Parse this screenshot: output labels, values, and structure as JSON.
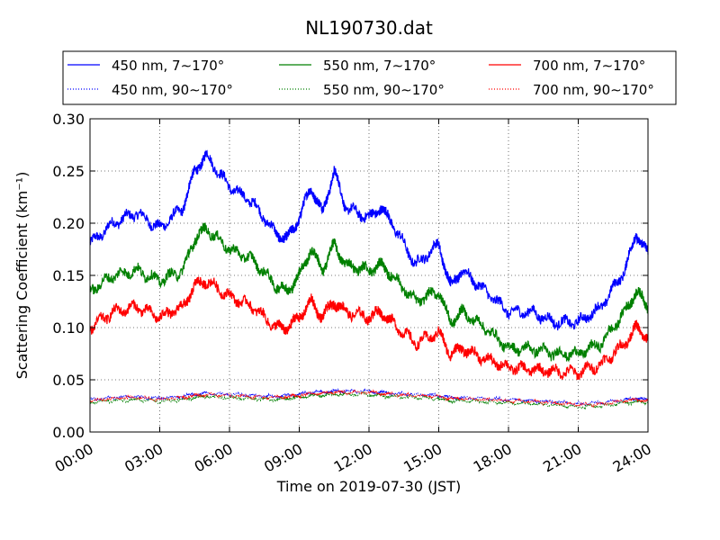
{
  "chart_data": {
    "type": "line",
    "title": "NL190730.dat",
    "xlabel": "Time on 2019-07-30 (JST)",
    "ylabel": "Scattering Coefficient (km⁻¹)",
    "xlim": [
      "00:00",
      "24:00"
    ],
    "ylim": [
      0.0,
      0.3
    ],
    "xticks": [
      "00:00",
      "03:00",
      "06:00",
      "09:00",
      "12:00",
      "15:00",
      "18:00",
      "21:00",
      "24:00"
    ],
    "yticks": [
      "0.00",
      "0.05",
      "0.10",
      "0.15",
      "0.20",
      "0.25",
      "0.30"
    ],
    "grid": true,
    "legend_position": "top, outside the plot area (3 columns)",
    "x": [
      "00:00",
      "01:00",
      "02:00",
      "03:00",
      "04:00",
      "04:30",
      "05:00",
      "06:00",
      "07:00",
      "08:00",
      "08:30",
      "09:00",
      "09:30",
      "10:00",
      "10:30",
      "11:00",
      "12:00",
      "12:30",
      "13:00",
      "14:00",
      "15:00",
      "15:30",
      "16:00",
      "17:00",
      "18:00",
      "19:00",
      "20:00",
      "21:00",
      "22:00",
      "23:00",
      "23:30",
      "24:00"
    ],
    "series": [
      {
        "name": "450 nm, 7∼170°",
        "color": "#0000ff",
        "style": "solid",
        "values": [
          0.18,
          0.2,
          0.21,
          0.195,
          0.215,
          0.25,
          0.265,
          0.235,
          0.22,
          0.19,
          0.185,
          0.205,
          0.235,
          0.21,
          0.25,
          0.215,
          0.205,
          0.215,
          0.2,
          0.16,
          0.18,
          0.14,
          0.155,
          0.135,
          0.115,
          0.115,
          0.105,
          0.105,
          0.12,
          0.155,
          0.19,
          0.17
        ]
      },
      {
        "name": "450 nm, 90∼170°",
        "color": "#0000ff",
        "style": "dotted",
        "values": [
          0.031,
          0.033,
          0.034,
          0.032,
          0.034,
          0.036,
          0.037,
          0.036,
          0.035,
          0.034,
          0.035,
          0.036,
          0.038,
          0.038,
          0.039,
          0.039,
          0.039,
          0.038,
          0.037,
          0.036,
          0.035,
          0.033,
          0.033,
          0.032,
          0.031,
          0.03,
          0.029,
          0.027,
          0.028,
          0.031,
          0.032,
          0.031
        ]
      },
      {
        "name": "550 nm, 7∼170°",
        "color": "#008000",
        "style": "solid",
        "values": [
          0.135,
          0.15,
          0.155,
          0.145,
          0.155,
          0.185,
          0.195,
          0.175,
          0.165,
          0.14,
          0.135,
          0.15,
          0.175,
          0.155,
          0.18,
          0.16,
          0.155,
          0.16,
          0.15,
          0.125,
          0.135,
          0.105,
          0.115,
          0.1,
          0.08,
          0.08,
          0.075,
          0.075,
          0.085,
          0.115,
          0.135,
          0.12
        ]
      },
      {
        "name": "550 nm, 90∼170°",
        "color": "#008000",
        "style": "dotted",
        "values": [
          0.028,
          0.03,
          0.031,
          0.029,
          0.031,
          0.033,
          0.034,
          0.033,
          0.032,
          0.031,
          0.032,
          0.033,
          0.035,
          0.035,
          0.036,
          0.036,
          0.036,
          0.035,
          0.034,
          0.033,
          0.032,
          0.03,
          0.03,
          0.029,
          0.028,
          0.027,
          0.026,
          0.024,
          0.025,
          0.028,
          0.029,
          0.028
        ]
      },
      {
        "name": "700 nm, 7∼170°",
        "color": "#ff0000",
        "style": "solid",
        "values": [
          0.1,
          0.115,
          0.12,
          0.11,
          0.12,
          0.14,
          0.145,
          0.13,
          0.12,
          0.1,
          0.1,
          0.11,
          0.125,
          0.11,
          0.125,
          0.115,
          0.11,
          0.115,
          0.105,
          0.085,
          0.095,
          0.075,
          0.08,
          0.07,
          0.062,
          0.06,
          0.058,
          0.057,
          0.065,
          0.085,
          0.1,
          0.09
        ]
      },
      {
        "name": "700 nm, 90∼170°",
        "color": "#ff0000",
        "style": "dotted",
        "values": [
          0.03,
          0.032,
          0.033,
          0.031,
          0.033,
          0.035,
          0.036,
          0.035,
          0.034,
          0.033,
          0.034,
          0.035,
          0.037,
          0.037,
          0.038,
          0.038,
          0.038,
          0.037,
          0.036,
          0.035,
          0.034,
          0.032,
          0.032,
          0.031,
          0.03,
          0.029,
          0.028,
          0.026,
          0.027,
          0.03,
          0.031,
          0.03
        ]
      }
    ]
  }
}
